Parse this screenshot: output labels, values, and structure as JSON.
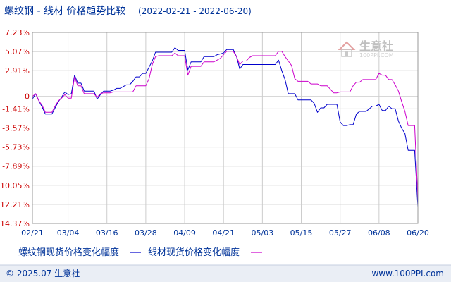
{
  "header": {
    "title": "螺纹钢 - 线材 价格趋势比较",
    "date_range": "(2022-02-21 - 2022-06-20)"
  },
  "watermark": {
    "brand": "生意社",
    "site": "100PPI.COM"
  },
  "footer": {
    "copyright": "© 2025.07 生意社",
    "url": "www.100PPI.com"
  },
  "colors": {
    "series_1": "#0000cc",
    "series_2": "#cc00cc",
    "y_tick_text": "#cc0000",
    "text_blue": "#003399",
    "grid": "#cccccc",
    "footer_bg": "#eaeef5"
  },
  "chart_data": {
    "type": "line",
    "y_unit": "%",
    "ylim": [
      -14.37,
      7.23
    ],
    "y_ticks": [
      "7.23%",
      "5.07%",
      "2.91%",
      "0",
      "-1.41%",
      "-3.57%",
      "-5.73%",
      "-7.89%",
      "-10.05%",
      "-12.21%",
      "-14.37%"
    ],
    "y_tick_values": [
      7.23,
      5.07,
      2.91,
      0,
      -1.41,
      -3.57,
      -5.73,
      -7.89,
      -10.05,
      -12.21,
      -14.37
    ],
    "x_ticks": [
      "02/21",
      "03/04",
      "03/16",
      "03/28",
      "04/09",
      "04/21",
      "05/03",
      "05/15",
      "05/27",
      "06/08",
      "06/20"
    ],
    "x_tick_values": [
      0,
      11,
      23,
      35,
      47,
      59,
      71,
      83,
      95,
      107,
      119
    ],
    "x_range": [
      0,
      119
    ],
    "grid": true,
    "legend_position": "bottom",
    "series": [
      {
        "name": "螺纹钢现货价格变化幅度",
        "color": "#0000cc",
        "x": [
          0,
          1,
          2,
          3,
          4,
          5,
          6,
          7,
          8,
          9,
          10,
          11,
          12,
          13,
          14,
          15,
          16,
          17,
          18,
          19,
          20,
          21,
          22,
          23,
          24,
          25,
          26,
          27,
          28,
          29,
          30,
          31,
          32,
          33,
          34,
          35,
          36,
          37,
          38,
          39,
          40,
          41,
          42,
          43,
          44,
          45,
          46,
          47,
          48,
          49,
          50,
          51,
          52,
          53,
          54,
          55,
          56,
          57,
          58,
          59,
          60,
          61,
          62,
          63,
          64,
          65,
          66,
          67,
          68,
          69,
          70,
          71,
          72,
          73,
          74,
          75,
          76,
          77,
          78,
          79,
          80,
          81,
          82,
          83,
          84,
          85,
          86,
          87,
          88,
          89,
          90,
          91,
          92,
          93,
          94,
          95,
          96,
          97,
          98,
          99,
          100,
          101,
          102,
          103,
          104,
          105,
          106,
          107,
          108,
          109,
          110,
          111,
          112,
          113,
          114,
          115,
          116,
          117,
          118,
          119
        ],
        "values": [
          -0.3,
          0.3,
          -0.5,
          -1.2,
          -2.0,
          -2.0,
          -2.0,
          -1.3,
          -0.6,
          -0.1,
          0.5,
          0.2,
          0.3,
          2.4,
          1.5,
          1.5,
          0.6,
          0.6,
          0.6,
          0.6,
          -0.3,
          0.2,
          0.6,
          0.6,
          0.6,
          0.7,
          0.9,
          0.9,
          1.1,
          1.3,
          1.3,
          1.7,
          2.2,
          2.2,
          2.6,
          2.6,
          3.3,
          4.0,
          5.0,
          5.0,
          5.0,
          5.0,
          5.0,
          5.0,
          5.5,
          5.2,
          5.2,
          5.2,
          3.0,
          3.9,
          3.9,
          3.9,
          3.9,
          4.5,
          4.5,
          4.5,
          4.5,
          4.7,
          4.8,
          4.9,
          5.3,
          5.3,
          5.3,
          4.5,
          3.1,
          3.6,
          3.6,
          3.6,
          3.6,
          3.6,
          3.6,
          3.6,
          3.6,
          3.6,
          3.6,
          3.6,
          4.1,
          2.9,
          1.9,
          0.3,
          0.3,
          0.3,
          -0.4,
          -0.4,
          -0.4,
          -0.4,
          -0.4,
          -0.8,
          -1.8,
          -1.3,
          -1.3,
          -0.9,
          -0.9,
          -0.9,
          -0.9,
          -2.9,
          -3.3,
          -3.3,
          -3.2,
          -3.2,
          -2.0,
          -1.7,
          -1.7,
          -1.7,
          -1.4,
          -1.1,
          -1.1,
          -0.9,
          -1.6,
          -1.6,
          -1.1,
          -1.4,
          -1.4,
          -2.8,
          -3.6,
          -4.2,
          -6.1,
          -6.1,
          -6.1,
          -12.5
        ]
      },
      {
        "name": "线材现货价格变化幅度",
        "color": "#cc00cc",
        "x": [
          0,
          1,
          2,
          3,
          4,
          5,
          6,
          7,
          8,
          9,
          10,
          11,
          12,
          13,
          14,
          15,
          16,
          17,
          18,
          19,
          20,
          21,
          22,
          23,
          24,
          25,
          26,
          27,
          28,
          29,
          30,
          31,
          32,
          33,
          34,
          35,
          36,
          37,
          38,
          39,
          40,
          41,
          42,
          43,
          44,
          45,
          46,
          47,
          48,
          49,
          50,
          51,
          52,
          53,
          54,
          55,
          56,
          57,
          58,
          59,
          60,
          61,
          62,
          63,
          64,
          65,
          66,
          67,
          68,
          69,
          70,
          71,
          72,
          73,
          74,
          75,
          76,
          77,
          78,
          79,
          80,
          81,
          82,
          83,
          84,
          85,
          86,
          87,
          88,
          89,
          90,
          91,
          92,
          93,
          94,
          95,
          96,
          97,
          98,
          99,
          100,
          101,
          102,
          103,
          104,
          105,
          106,
          107,
          108,
          109,
          110,
          111,
          112,
          113,
          114,
          115,
          116,
          117,
          118,
          119
        ],
        "values": [
          0.0,
          0.3,
          -0.5,
          -1.0,
          -1.8,
          -1.8,
          -1.8,
          -1.1,
          -0.5,
          -0.2,
          0.2,
          -0.2,
          -0.2,
          2.2,
          1.2,
          1.2,
          0.3,
          0.3,
          0.3,
          0.3,
          -0.1,
          0.3,
          0.4,
          0.4,
          0.4,
          0.5,
          0.5,
          0.5,
          0.5,
          0.5,
          0.5,
          0.5,
          1.2,
          1.2,
          1.2,
          1.2,
          2.0,
          3.6,
          4.5,
          4.6,
          4.6,
          4.6,
          4.6,
          4.6,
          4.9,
          4.6,
          4.6,
          4.6,
          2.4,
          3.4,
          3.4,
          3.4,
          3.4,
          3.9,
          3.9,
          3.9,
          3.9,
          4.1,
          4.3,
          4.7,
          5.1,
          5.1,
          5.1,
          4.5,
          3.6,
          4.0,
          4.0,
          4.4,
          4.6,
          4.6,
          4.6,
          4.6,
          4.6,
          4.6,
          4.6,
          4.6,
          5.1,
          5.1,
          4.5,
          4.0,
          3.5,
          2.0,
          1.7,
          1.7,
          1.7,
          1.7,
          1.4,
          1.4,
          1.4,
          1.2,
          1.2,
          1.2,
          0.8,
          0.4,
          0.4,
          0.5,
          0.5,
          0.5,
          0.5,
          1.2,
          1.6,
          1.6,
          1.9,
          1.9,
          1.9,
          1.9,
          1.9,
          2.6,
          2.4,
          2.4,
          1.9,
          1.9,
          1.3,
          0.6,
          -0.6,
          -1.7,
          -3.3,
          -3.3,
          -3.3,
          -11.6
        ]
      }
    ]
  }
}
